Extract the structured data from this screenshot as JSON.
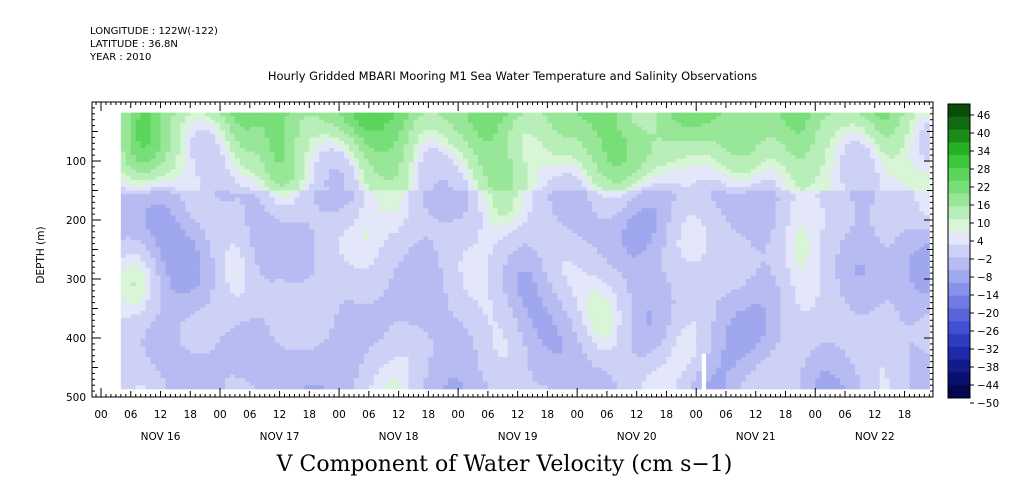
{
  "header": {
    "longitude": "LONGITUDE : 122W(-122)",
    "latitude": "LATITUDE : 36.8N",
    "year": "YEAR : 2010"
  },
  "chart_data": {
    "type": "heatmap",
    "title": "Hourly Gridded MBARI Mooring M1 Sea Water Temperature and Salinity Observations",
    "xlabel": "V Component of Water Velocity (cm s−1)",
    "ylabel": "DEPTH (m)",
    "x_range_hours": [
      0,
      168
    ],
    "ylim": [
      500,
      0
    ],
    "y_ticks": [
      100,
      200,
      300,
      400,
      500
    ],
    "hour_ticks": [
      "00",
      "06",
      "12",
      "18",
      "00",
      "06",
      "12",
      "18",
      "00",
      "06",
      "12",
      "18",
      "00",
      "06",
      "12",
      "18",
      "00",
      "06",
      "12",
      "18",
      "00",
      "06",
      "12",
      "18",
      "00",
      "06",
      "12",
      "18"
    ],
    "day_labels": [
      "NOV 16",
      "NOV 17",
      "NOV 18",
      "NOV 19",
      "NOV 20",
      "NOV 21",
      "NOV 22"
    ],
    "colorbar": {
      "labels": [
        "46",
        "40",
        "34",
        "28",
        "22",
        "16",
        "10",
        "4",
        "−2",
        "−8",
        "−14",
        "−20",
        "−26",
        "−32",
        "−38",
        "−44",
        "−50"
      ],
      "range": [
        -50,
        50
      ],
      "colors_positive": [
        "#d8f5d8",
        "#b8eeb8",
        "#98e698",
        "#78de78",
        "#5ad45a",
        "#3cc83c",
        "#26b026",
        "#1a8c1a",
        "#126b12",
        "#0a4d0a"
      ],
      "colors_negative": [
        "#e4e6fa",
        "#cdd1f6",
        "#b6bcf2",
        "#9fa7ee",
        "#8892ea",
        "#6f7be2",
        "#5865da",
        "#4150d0",
        "#2d3cc0",
        "#1e2aa8",
        "#121a8c",
        "#0a0e6e",
        "#05064f"
      ]
    },
    "data_extent": {
      "depth_top": 18,
      "depth_bottom": 485,
      "hour_start": 4,
      "hour_end": 167
    },
    "series_description_free": false
  }
}
